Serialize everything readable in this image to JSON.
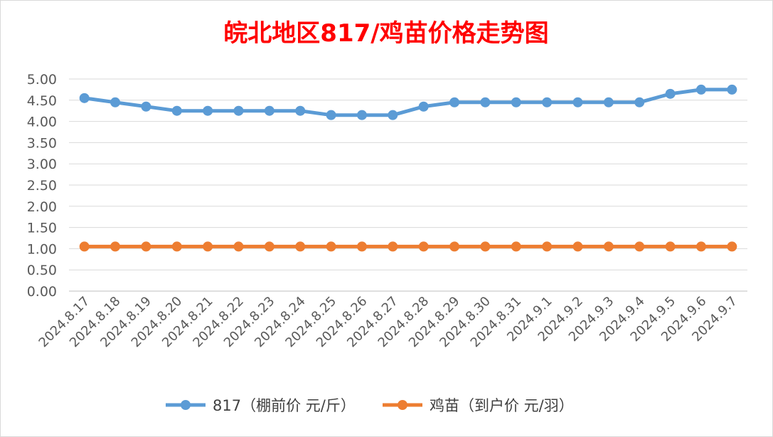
{
  "chart_data": {
    "type": "line",
    "title": "皖北地区817/鸡苗价格走势图",
    "categories": [
      "2024.8.17",
      "2024.8.18",
      "2024.8.19",
      "2024.8.20",
      "2024.8.21",
      "2024.8.22",
      "2024.8.23",
      "2024.8.24",
      "2024.8.25",
      "2024.8.26",
      "2024.8.27",
      "2024.8.28",
      "2024.8.29",
      "2024.8.30",
      "2024.8.31",
      "2024.9.1",
      "2024.9.2",
      "2024.9.3",
      "2024.9.4",
      "2024.9.5",
      "2024.9.6",
      "2024.9.7"
    ],
    "y_ticks": [
      "0.00",
      "0.50",
      "1.00",
      "1.50",
      "2.00",
      "2.50",
      "3.00",
      "3.50",
      "4.00",
      "4.50",
      "5.00"
    ],
    "ylim": [
      0,
      5
    ],
    "grid": true,
    "legend_position": "bottom",
    "title_color": "#ff0000",
    "series": [
      {
        "name": "817（棚前价 元/斤）",
        "color": "#5b9bd5",
        "values": [
          4.55,
          4.45,
          4.35,
          4.25,
          4.25,
          4.25,
          4.25,
          4.25,
          4.15,
          4.15,
          4.15,
          4.35,
          4.45,
          4.45,
          4.45,
          4.45,
          4.45,
          4.45,
          4.45,
          4.65,
          4.75,
          4.75
        ]
      },
      {
        "name": "鸡苗（到户价 元/羽）",
        "color": "#ed7d31",
        "values": [
          1.05,
          1.05,
          1.05,
          1.05,
          1.05,
          1.05,
          1.05,
          1.05,
          1.05,
          1.05,
          1.05,
          1.05,
          1.05,
          1.05,
          1.05,
          1.05,
          1.05,
          1.05,
          1.05,
          1.05,
          1.05,
          1.05
        ]
      }
    ]
  }
}
